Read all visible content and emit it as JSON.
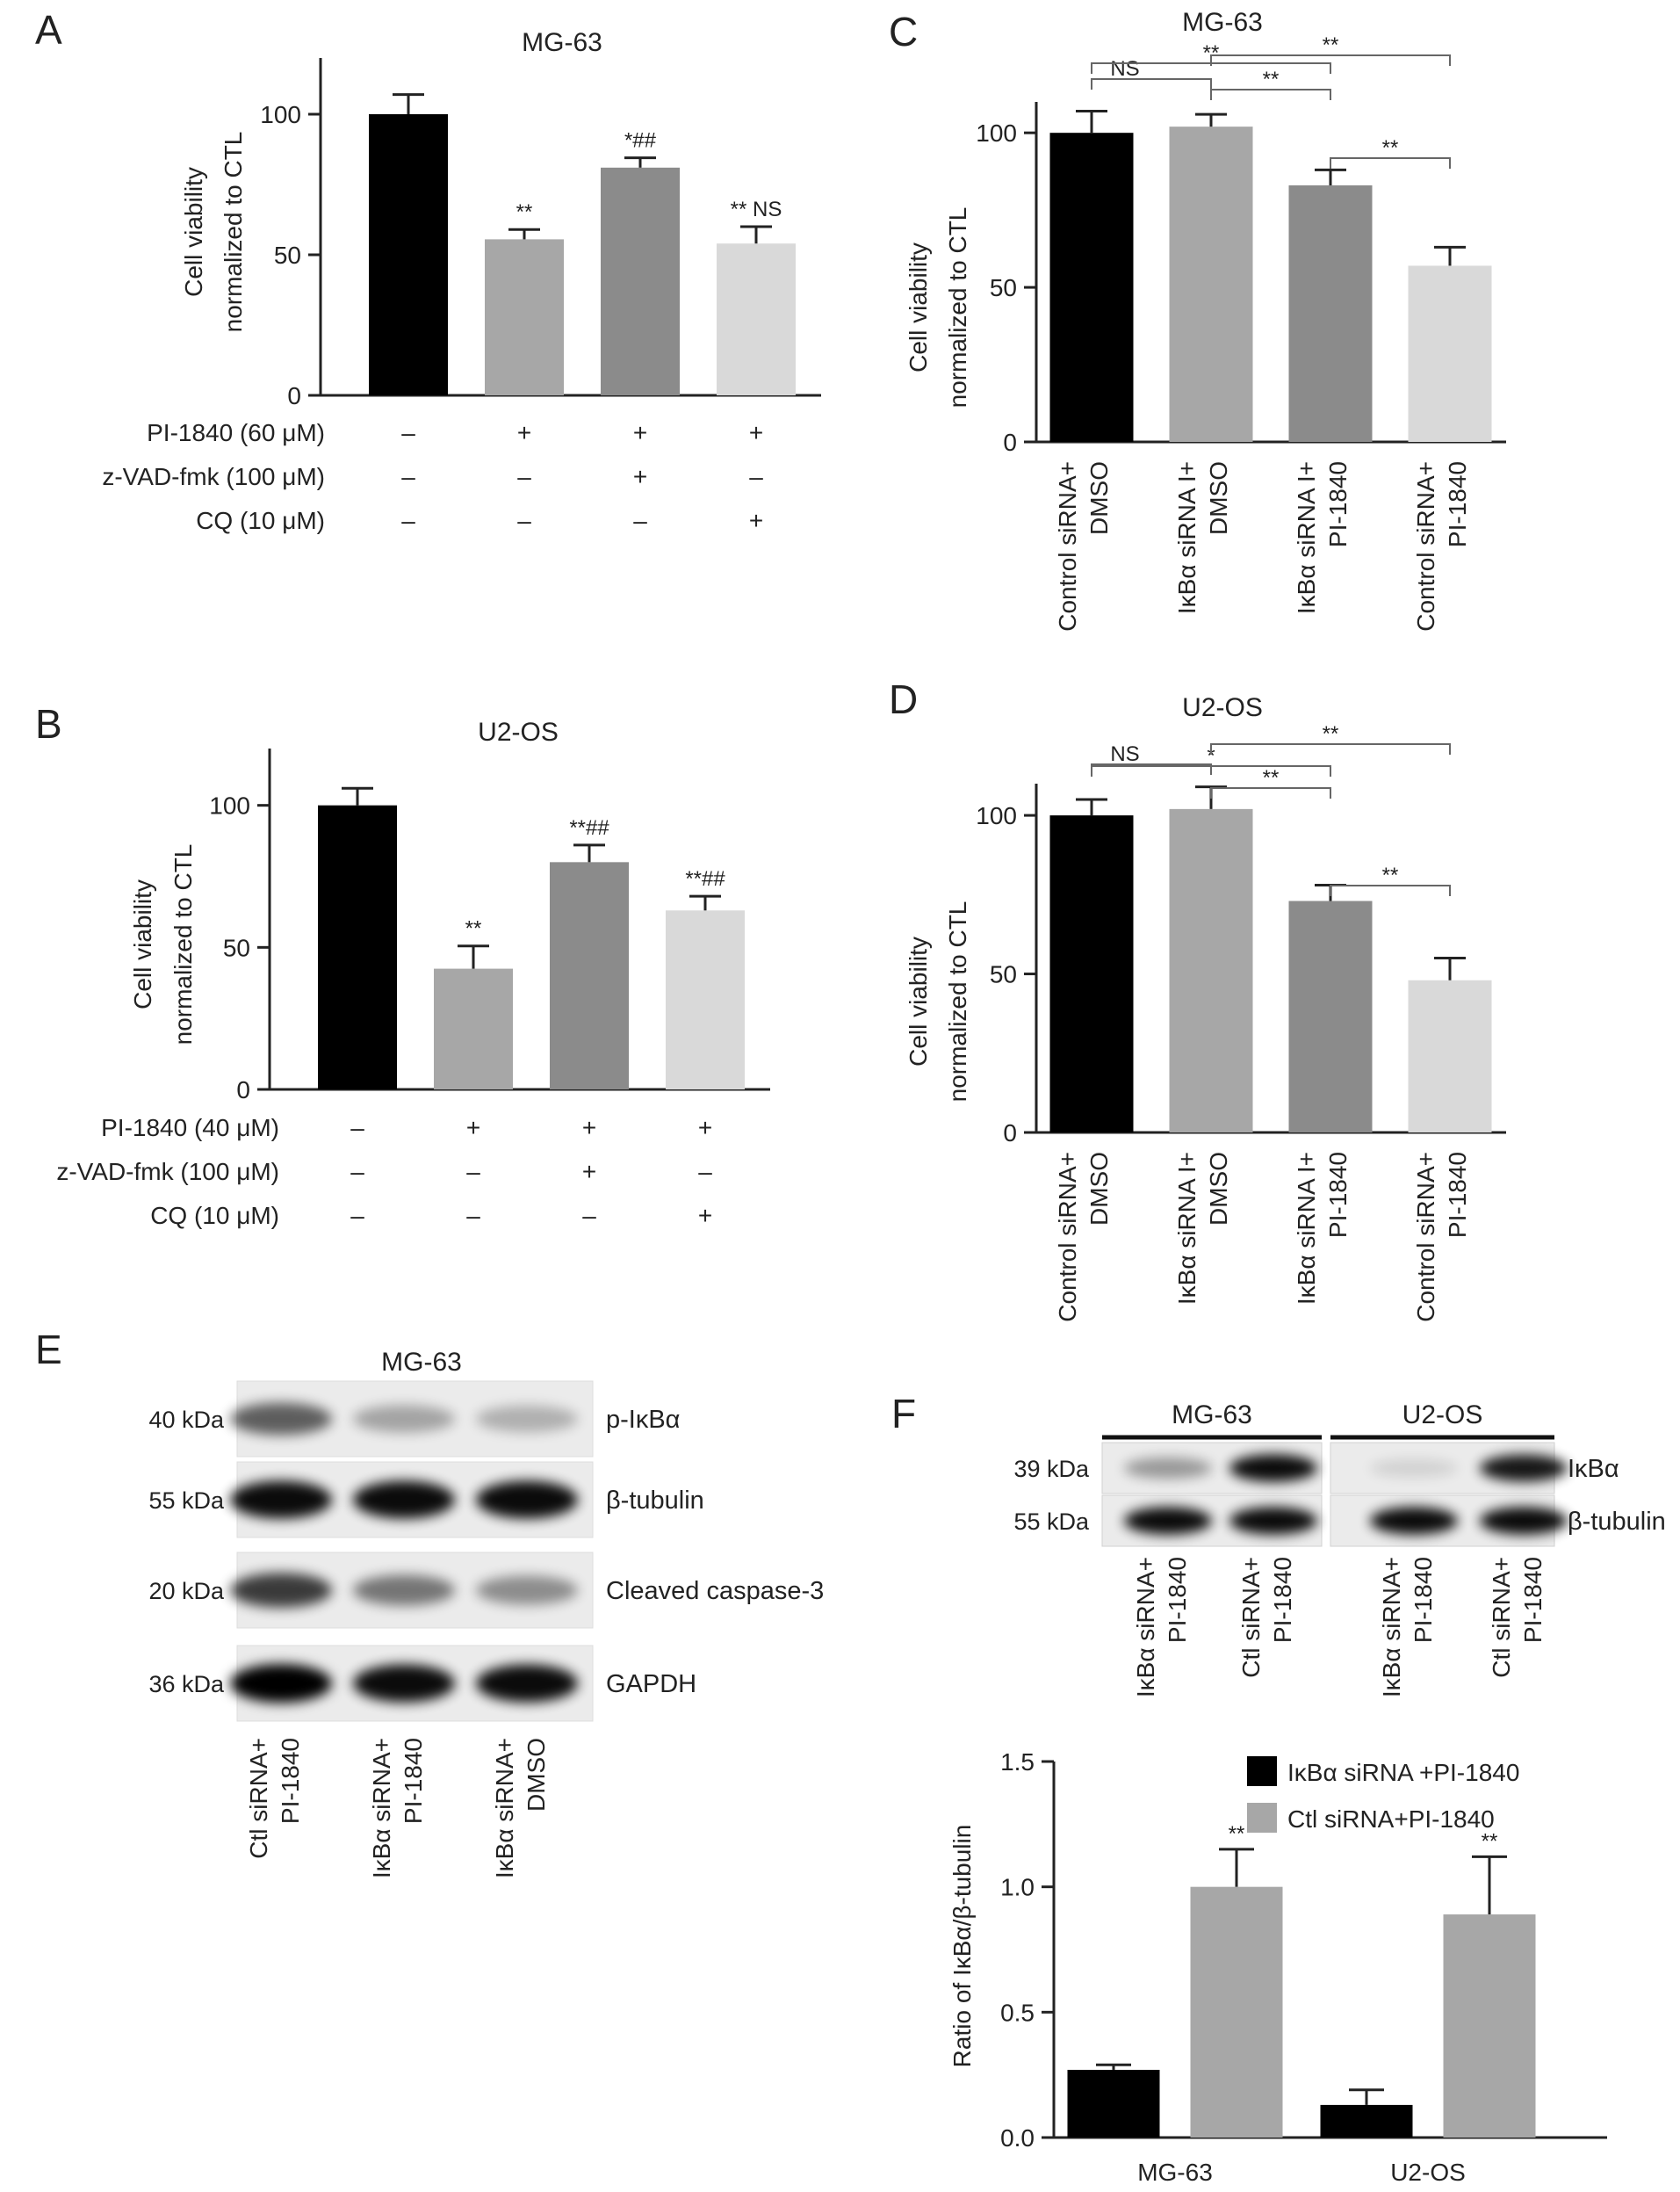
{
  "colors": {
    "black": "#000000",
    "gray_mid": "#a7a7a7",
    "gray_dark": "#8b8b8b",
    "gray_light": "#d9d9d9",
    "axis": "#222222"
  },
  "chart_data": [
    {
      "id": "A",
      "type": "bar",
      "panel_letter": "A",
      "title": "MG-63",
      "ylabel_lines": [
        "Cell viability",
        "normalized to CTL"
      ],
      "ylim": [
        0,
        120
      ],
      "yticks": [
        0,
        50,
        100
      ],
      "values": [
        100,
        55.5,
        81,
        54
      ],
      "errors": [
        7,
        3.5,
        3.5,
        6
      ],
      "bar_colors": [
        "#000000",
        "#a7a7a7",
        "#8b8b8b",
        "#d9d9d9"
      ],
      "bar_labels": [
        "",
        "**",
        "*##",
        "** NS"
      ],
      "conditions": [
        {
          "label": "PI-1840 (60 μM)",
          "marks": [
            "–",
            "+",
            "+",
            "+"
          ]
        },
        {
          "label": "z-VAD-fmk (100 μM)",
          "marks": [
            "–",
            "–",
            "+",
            "–"
          ]
        },
        {
          "label": "CQ (10 μM)",
          "marks": [
            "–",
            "–",
            "–",
            "+"
          ]
        }
      ]
    },
    {
      "id": "B",
      "type": "bar",
      "panel_letter": "B",
      "title": "U2-OS",
      "ylabel_lines": [
        "Cell viability",
        "normalized to CTL"
      ],
      "ylim": [
        0,
        120
      ],
      "yticks": [
        0,
        50,
        100
      ],
      "values": [
        100,
        42.5,
        80,
        63
      ],
      "errors": [
        6,
        8,
        6,
        5
      ],
      "bar_colors": [
        "#000000",
        "#a7a7a7",
        "#8b8b8b",
        "#d9d9d9"
      ],
      "bar_labels": [
        "",
        "**",
        "**##",
        "**##"
      ],
      "conditions": [
        {
          "label": "PI-1840 (40 μM)",
          "marks": [
            "–",
            "+",
            "+",
            "+"
          ]
        },
        {
          "label": "z-VAD-fmk (100 μM)",
          "marks": [
            "–",
            "–",
            "+",
            "–"
          ]
        },
        {
          "label": "CQ (10 μM)",
          "marks": [
            "–",
            "–",
            "–",
            "+"
          ]
        }
      ]
    },
    {
      "id": "C",
      "type": "bar",
      "panel_letter": "C",
      "title": "MG-63",
      "ylabel_lines": [
        "Cell viability",
        "normalized to CTL"
      ],
      "ylim": [
        0,
        110
      ],
      "yticks": [
        0,
        50,
        100
      ],
      "values": [
        100,
        102,
        83,
        57
      ],
      "errors": [
        7,
        4,
        5,
        6
      ],
      "bar_colors": [
        "#000000",
        "#a7a7a7",
        "#8b8b8b",
        "#d9d9d9"
      ],
      "categories": [
        [
          "Control siRNA+",
          "DMSO"
        ],
        [
          "IκBα siRNA I+",
          "DMSO"
        ],
        [
          "IκBα siRNA I+",
          "PI-1840"
        ],
        [
          "Control siRNA+",
          "PI-1840"
        ]
      ],
      "brackets": [
        {
          "from": 0,
          "to": 1,
          "label": "NS"
        },
        {
          "from": 0,
          "to": 2,
          "label": "**"
        },
        {
          "from": 1,
          "to": 2,
          "label": "**"
        },
        {
          "from": 1,
          "to": 3,
          "label": "**"
        },
        {
          "from": 2,
          "to": 3,
          "label": "**"
        }
      ]
    },
    {
      "id": "D",
      "type": "bar",
      "panel_letter": "D",
      "title": "U2-OS",
      "ylabel_lines": [
        "Cell viability",
        "normalized to CTL"
      ],
      "ylim": [
        0,
        110
      ],
      "yticks": [
        0,
        50,
        100
      ],
      "values": [
        100,
        102,
        73,
        48
      ],
      "errors": [
        5,
        7,
        5,
        7
      ],
      "bar_colors": [
        "#000000",
        "#a7a7a7",
        "#8b8b8b",
        "#d9d9d9"
      ],
      "categories": [
        [
          "Control siRNA+",
          "DMSO"
        ],
        [
          "IκBα siRNA I+",
          "DMSO"
        ],
        [
          "IκBα siRNA I+",
          "PI-1840"
        ],
        [
          "Control siRNA+",
          "PI-1840"
        ]
      ],
      "brackets": [
        {
          "from": 0,
          "to": 1,
          "label": "NS"
        },
        {
          "from": 0,
          "to": 2,
          "label": "*"
        },
        {
          "from": 1,
          "to": 2,
          "label": "**"
        },
        {
          "from": 1,
          "to": 3,
          "label": "**"
        },
        {
          "from": 2,
          "to": 3,
          "label": "**"
        }
      ]
    },
    {
      "id": "F",
      "type": "bar",
      "title": "",
      "ylabel": "Ratio of IκBα/β-tubulin",
      "ylim": [
        0,
        1.5
      ],
      "yticks": [
        0.0,
        0.5,
        1.0,
        1.5
      ],
      "categories": [
        "MG-63",
        "U2-OS"
      ],
      "series": [
        {
          "name": "IκBα siRNA +PI-1840",
          "color": "#000000",
          "values": [
            0.27,
            0.13
          ],
          "errors": [
            0.02,
            0.06
          ],
          "labels": [
            "",
            ""
          ]
        },
        {
          "name": "Ctl siRNA+PI-1840",
          "color": "#a7a7a7",
          "values": [
            1.0,
            0.89
          ],
          "errors": [
            0.15,
            0.23
          ],
          "labels": [
            "**",
            "**"
          ]
        }
      ],
      "legend_position": "top-right"
    }
  ],
  "blot_E": {
    "panel_letter": "E",
    "title": "MG-63",
    "rows": [
      {
        "kda": "40 kDa",
        "protein": "p-IκBα",
        "intensity": [
          0.6,
          0.3,
          0.25
        ]
      },
      {
        "kda": "55 kDa",
        "protein": "β-tubulin",
        "intensity": [
          0.95,
          0.95,
          0.95
        ]
      },
      {
        "kda": "20 kDa",
        "protein": "Cleaved caspase-3",
        "intensity": [
          0.75,
          0.5,
          0.4
        ]
      },
      {
        "kda": "36 kDa",
        "protein": "GAPDH",
        "intensity": [
          1.0,
          0.95,
          0.95
        ]
      }
    ],
    "lanes": [
      [
        "Ctl siRNA+",
        "PI-1840"
      ],
      [
        "IκBα siRNA+",
        "PI-1840"
      ],
      [
        "IκBα siRNA+",
        "DMSO"
      ]
    ]
  },
  "blot_F": {
    "panel_letter": "F",
    "groups": [
      "MG-63",
      "U2-OS"
    ],
    "rows": [
      {
        "kda": "39 kDa",
        "protein": "IκBα",
        "intensity": [
          0.35,
          0.95,
          0.1,
          0.9
        ]
      },
      {
        "kda": "55 kDa",
        "protein": "β-tubulin",
        "intensity": [
          0.95,
          0.95,
          0.95,
          0.95
        ]
      }
    ],
    "lanes": [
      [
        "IκBα siRNA+",
        "PI-1840"
      ],
      [
        "Ctl siRNA+",
        "PI-1840"
      ],
      [
        "IκBα siRNA+",
        "PI-1840"
      ],
      [
        "Ctl siRNA+",
        "PI-1840"
      ]
    ]
  }
}
